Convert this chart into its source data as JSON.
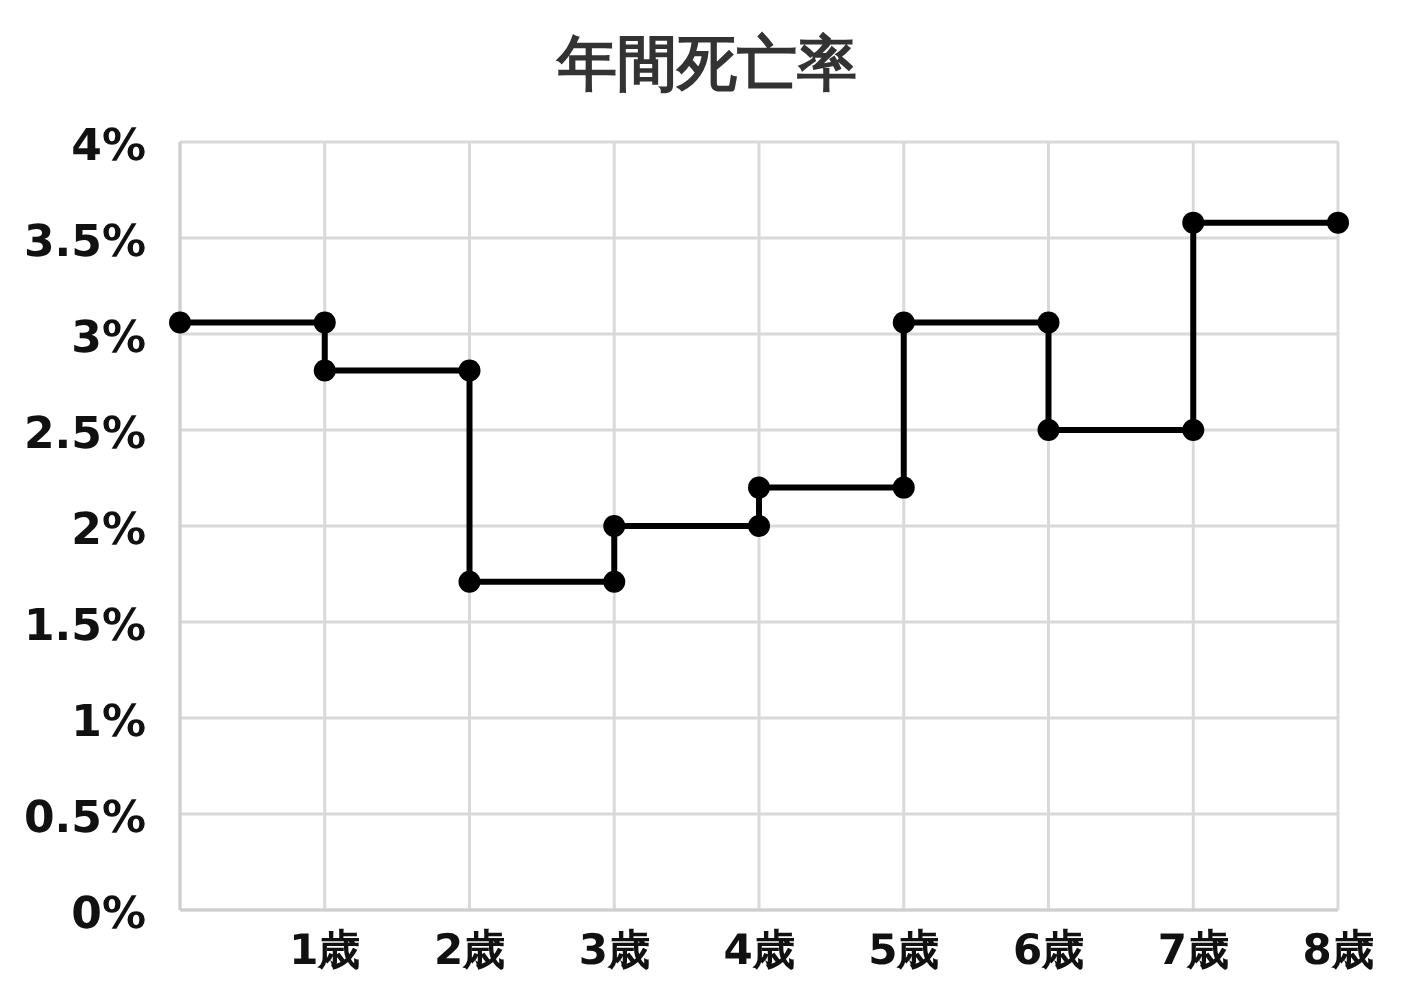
{
  "chart_data": {
    "type": "line",
    "title": "年間死亡率",
    "x": [
      0,
      1,
      1,
      2,
      2,
      3,
      3,
      4,
      4,
      5,
      5,
      6,
      6,
      7,
      7,
      8
    ],
    "series": [
      {
        "color": "#000000",
        "values": [
          3.06,
          3.06,
          2.81,
          2.81,
          1.71,
          1.71,
          2.0,
          2.0,
          2.2,
          2.2,
          3.06,
          3.06,
          2.5,
          2.5,
          3.58,
          3.58
        ]
      }
    ],
    "xlim": [
      0,
      8
    ],
    "xticks": [
      {
        "value": 0,
        "label": null
      },
      {
        "value": 1,
        "label": "1歳"
      },
      {
        "value": 2,
        "label": "2歳"
      },
      {
        "value": 3,
        "label": "3歳"
      },
      {
        "value": 4,
        "label": "4歳"
      },
      {
        "value": 5,
        "label": "5歳"
      },
      {
        "value": 6,
        "label": "6歳"
      },
      {
        "value": 7,
        "label": "7歳"
      },
      {
        "value": 8,
        "label": "8歳"
      }
    ],
    "ylim": [
      0,
      4
    ],
    "yticks": [
      {
        "value": 0,
        "label": "0%"
      },
      {
        "value": 0.5,
        "label": "0.5%"
      },
      {
        "value": 1,
        "label": "1%"
      },
      {
        "value": 1.5,
        "label": "1.5%"
      },
      {
        "value": 2,
        "label": "2%"
      },
      {
        "value": 2.5,
        "label": "2.5%"
      },
      {
        "value": 3,
        "label": "3%"
      },
      {
        "value": 3.5,
        "label": "3.5%"
      },
      {
        "value": 4,
        "label": "4%"
      }
    ],
    "grid": true,
    "marker": "circle",
    "line_style": "solid"
  }
}
